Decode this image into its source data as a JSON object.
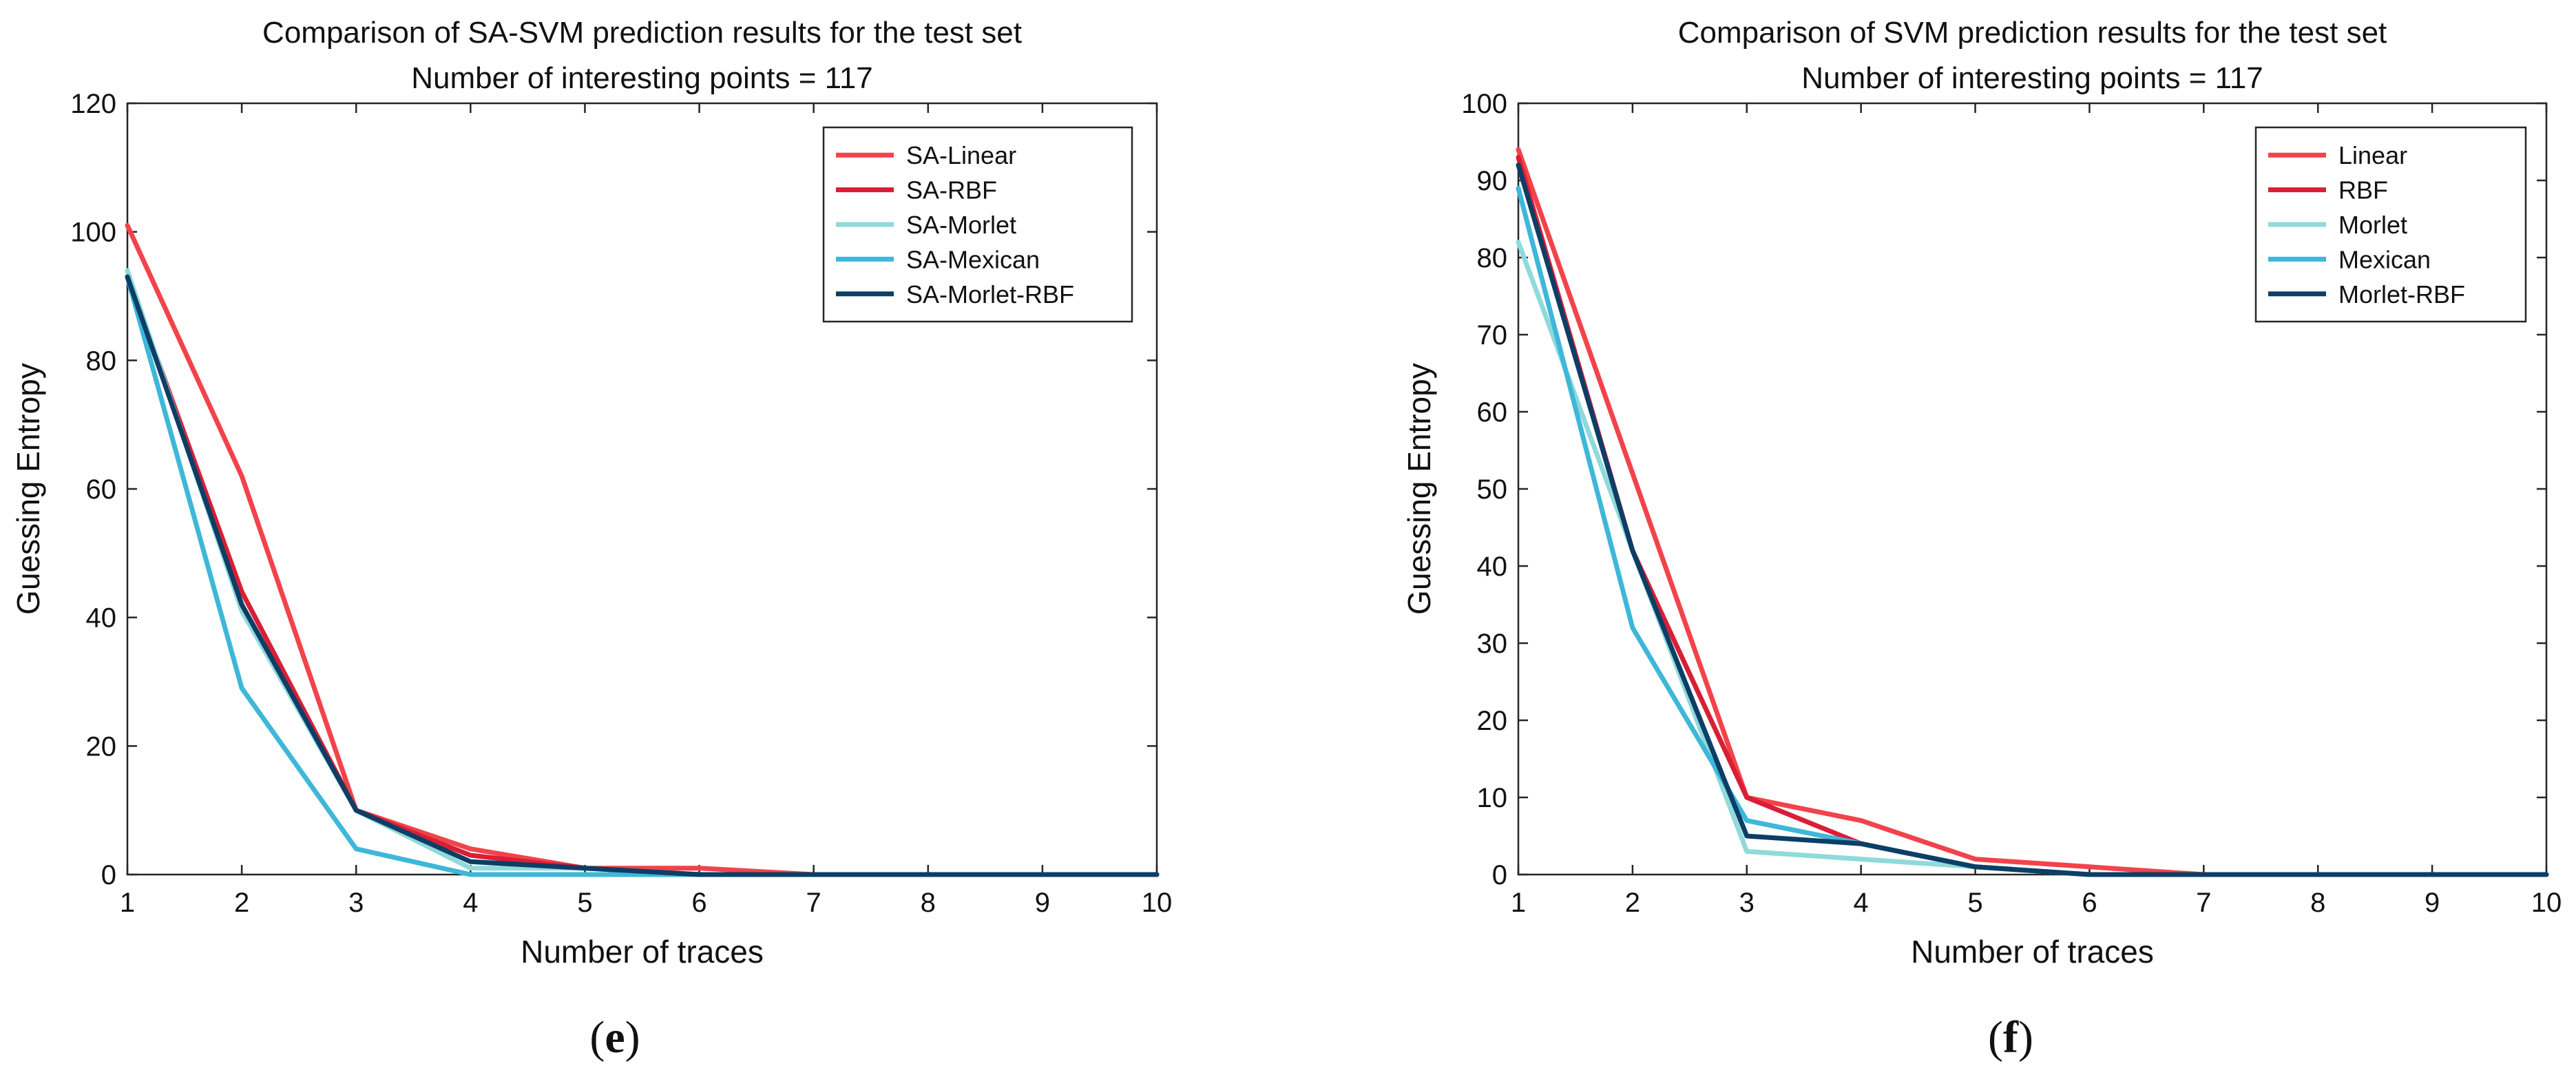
{
  "chart_data": [
    {
      "type": "line",
      "caption": "(e)",
      "caption_parts": {
        "open": "(",
        "letter": "e",
        "close": ")"
      },
      "title": "Comparison of SA-SVM prediction results for the test set",
      "subtitle": "Number of interesting points = 117",
      "xlabel": "Number of traces",
      "ylabel": "Guessing Entropy",
      "xlim": [
        1,
        10
      ],
      "ylim": [
        0,
        120
      ],
      "xticks": [
        1,
        2,
        3,
        4,
        5,
        6,
        7,
        8,
        9,
        10
      ],
      "yticks": [
        0,
        20,
        40,
        60,
        80,
        100,
        120
      ],
      "legend_position": "top-right",
      "x": [
        1,
        2,
        3,
        4,
        5,
        6,
        7,
        8,
        9,
        10
      ],
      "series": [
        {
          "name": "SA-Linear",
          "color": "#f2434b",
          "values": [
            101,
            62,
            10,
            4,
            1,
            1,
            0,
            0,
            0,
            0
          ]
        },
        {
          "name": "SA-RBF",
          "color": "#d81f35",
          "values": [
            93,
            44,
            10,
            3,
            1,
            0,
            0,
            0,
            0,
            0
          ]
        },
        {
          "name": "SA-Morlet",
          "color": "#8fdada",
          "values": [
            94,
            41,
            10,
            1,
            1,
            0,
            0,
            0,
            0,
            0
          ]
        },
        {
          "name": "SA-Mexican",
          "color": "#3eb7d8",
          "values": [
            93,
            29,
            4,
            0,
            0,
            0,
            0,
            0,
            0,
            0
          ]
        },
        {
          "name": "SA-Morlet-RBF",
          "color": "#0c3e66",
          "values": [
            93,
            42,
            10,
            2,
            1,
            0,
            0,
            0,
            0,
            0
          ]
        }
      ]
    },
    {
      "type": "line",
      "caption": "(f)",
      "caption_parts": {
        "open": "(",
        "letter": "f",
        "close": ")"
      },
      "title": "Comparison of SVM prediction results for the test set",
      "subtitle": "Number of interesting points = 117",
      "xlabel": "Number of traces",
      "ylabel": "Guessing Entropy",
      "xlim": [
        1,
        10
      ],
      "ylim": [
        0,
        100
      ],
      "xticks": [
        1,
        2,
        3,
        4,
        5,
        6,
        7,
        8,
        9,
        10
      ],
      "yticks": [
        0,
        10,
        20,
        30,
        40,
        50,
        60,
        70,
        80,
        90,
        100
      ],
      "legend_position": "top-right",
      "x": [
        1,
        2,
        3,
        4,
        5,
        6,
        7,
        8,
        9,
        10
      ],
      "series": [
        {
          "name": "Linear",
          "color": "#f2434b",
          "values": [
            94,
            52,
            10,
            7,
            2,
            1,
            0,
            0,
            0,
            0
          ]
        },
        {
          "name": "RBF",
          "color": "#d81f35",
          "values": [
            93,
            42,
            10,
            4,
            1,
            0,
            0,
            0,
            0,
            0
          ]
        },
        {
          "name": "Morlet",
          "color": "#8fdada",
          "values": [
            82,
            42,
            3,
            2,
            1,
            0,
            0,
            0,
            0,
            0
          ]
        },
        {
          "name": "Mexican",
          "color": "#3eb7d8",
          "values": [
            89,
            32,
            7,
            4,
            1,
            0,
            0,
            0,
            0,
            0
          ]
        },
        {
          "name": "Morlet-RBF",
          "color": "#0c3e66",
          "values": [
            92,
            42,
            5,
            4,
            1,
            0,
            0,
            0,
            0,
            0
          ]
        }
      ]
    }
  ]
}
